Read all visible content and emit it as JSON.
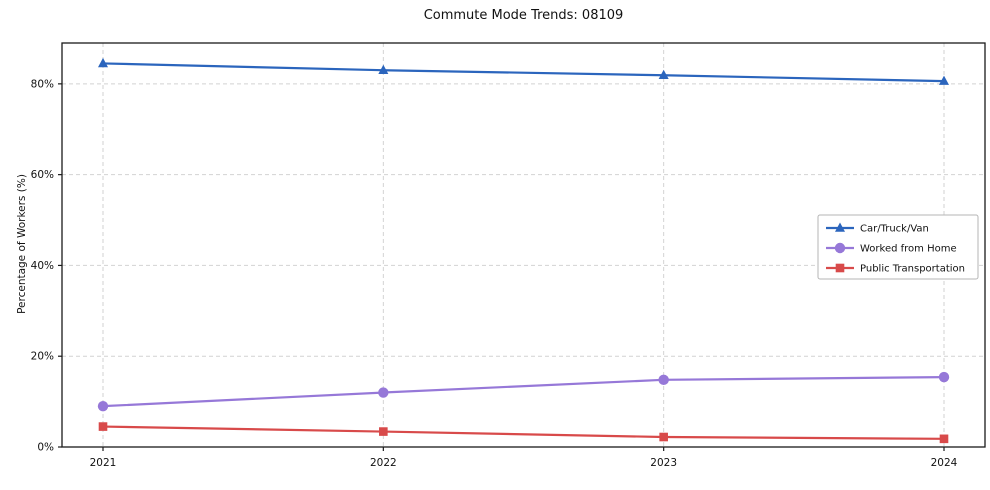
{
  "chart_data": {
    "type": "line",
    "title": "Commute Mode Trends: 08109",
    "xlabel": "",
    "ylabel": "Percentage of Workers (%)",
    "x": [
      "2021",
      "2022",
      "2023",
      "2024"
    ],
    "series": [
      {
        "name": "Car/Truck/Van",
        "color": "#2b65bd",
        "marker": "triangle",
        "values": [
          84.5,
          83.0,
          81.9,
          80.6
        ]
      },
      {
        "name": "Worked from Home",
        "color": "#9678d8",
        "marker": "circle",
        "values": [
          9.0,
          12.0,
          14.8,
          15.4
        ]
      },
      {
        "name": "Public Transportation",
        "color": "#d84a4a",
        "marker": "square",
        "values": [
          4.5,
          3.4,
          2.2,
          1.8
        ]
      }
    ],
    "ylim": [
      0,
      89
    ],
    "yticks": [
      0,
      20,
      40,
      60,
      80
    ],
    "ytick_labels": [
      "0%",
      "20%",
      "40%",
      "60%",
      "80%"
    ],
    "grid": true,
    "grid_style": "dashed",
    "grid_color": "#d2d2d2",
    "axis_color": "#1a1a1a",
    "legend_position": "center right"
  }
}
